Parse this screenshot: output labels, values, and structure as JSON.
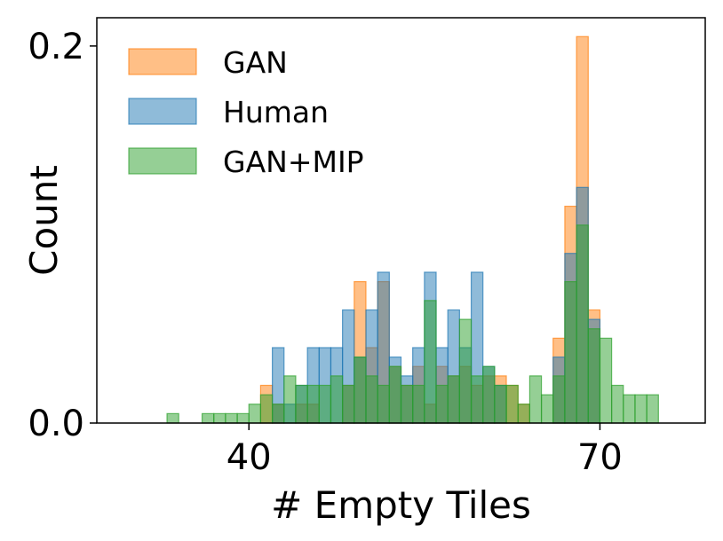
{
  "chart_data": {
    "type": "bar",
    "histogram": true,
    "xlabel": "# Empty Tiles",
    "ylabel": "Count",
    "xlim": [
      27,
      79
    ],
    "ylim": [
      0,
      0.215
    ],
    "xticks": [
      {
        "value": 40,
        "label": "40"
      },
      {
        "value": 70,
        "label": "70"
      }
    ],
    "yticks": [
      {
        "value": 0.0,
        "label": "0.0"
      },
      {
        "value": 0.2,
        "label": "0.2"
      }
    ],
    "legend_position": "upper-left",
    "grid": false,
    "series": [
      {
        "name": "GAN",
        "color": "#ff7f0e",
        "values": [
          [
            41.5,
            0.02
          ],
          [
            42.5,
            0.01
          ],
          [
            44.5,
            0.01
          ],
          [
            45.5,
            0.01
          ],
          [
            48.5,
            0.02
          ],
          [
            49.5,
            0.075
          ],
          [
            50.5,
            0.04
          ],
          [
            51.5,
            0.075
          ],
          [
            52.5,
            0.03
          ],
          [
            53.5,
            0.02
          ],
          [
            54.5,
            0.03
          ],
          [
            55.5,
            0.01
          ],
          [
            56.5,
            0.03
          ],
          [
            57.5,
            0.025
          ],
          [
            58.5,
            0.03
          ],
          [
            59.5,
            0.02
          ],
          [
            60.5,
            0.025
          ],
          [
            61.5,
            0.025
          ],
          [
            62.5,
            0.02
          ],
          [
            63.5,
            0.01
          ],
          [
            66.5,
            0.045
          ],
          [
            67.5,
            0.115
          ],
          [
            68.5,
            0.205
          ],
          [
            69.5,
            0.06
          ]
        ]
      },
      {
        "name": "Human",
        "color": "#1f77b4",
        "values": [
          [
            42.5,
            0.04
          ],
          [
            43.5,
            0.01
          ],
          [
            44.5,
            0.02
          ],
          [
            45.5,
            0.04
          ],
          [
            46.5,
            0.04
          ],
          [
            47.5,
            0.04
          ],
          [
            48.5,
            0.06
          ],
          [
            49.5,
            0.035
          ],
          [
            50.5,
            0.06
          ],
          [
            51.5,
            0.08
          ],
          [
            52.5,
            0.035
          ],
          [
            53.5,
            0.025
          ],
          [
            54.5,
            0.04
          ],
          [
            55.5,
            0.08
          ],
          [
            56.5,
            0.04
          ],
          [
            57.5,
            0.06
          ],
          [
            58.5,
            0.04
          ],
          [
            59.5,
            0.08
          ],
          [
            60.5,
            0.03
          ],
          [
            61.5,
            0.02
          ],
          [
            66.5,
            0.035
          ],
          [
            67.5,
            0.09
          ],
          [
            68.5,
            0.125
          ],
          [
            69.5,
            0.055
          ]
        ]
      },
      {
        "name": "GAN+MIP",
        "color": "#2ca02c",
        "values": [
          [
            33.5,
            0.005
          ],
          [
            36.5,
            0.005
          ],
          [
            37.5,
            0.005
          ],
          [
            38.5,
            0.005
          ],
          [
            39.5,
            0.005
          ],
          [
            40.5,
            0.01
          ],
          [
            41.5,
            0.015
          ],
          [
            42.5,
            0.01
          ],
          [
            43.5,
            0.025
          ],
          [
            44.5,
            0.02
          ],
          [
            45.5,
            0.02
          ],
          [
            46.5,
            0.02
          ],
          [
            47.5,
            0.025
          ],
          [
            48.5,
            0.02
          ],
          [
            49.5,
            0.035
          ],
          [
            50.5,
            0.025
          ],
          [
            51.5,
            0.02
          ],
          [
            52.5,
            0.03
          ],
          [
            53.5,
            0.02
          ],
          [
            54.5,
            0.02
          ],
          [
            55.5,
            0.065
          ],
          [
            56.5,
            0.02
          ],
          [
            57.5,
            0.025
          ],
          [
            58.5,
            0.055
          ],
          [
            59.5,
            0.025
          ],
          [
            60.5,
            0.03
          ],
          [
            61.5,
            0.02
          ],
          [
            62.5,
            0.02
          ],
          [
            63.5,
            0.01
          ],
          [
            64.5,
            0.025
          ],
          [
            65.5,
            0.015
          ],
          [
            66.5,
            0.025
          ],
          [
            67.5,
            0.075
          ],
          [
            68.5,
            0.105
          ],
          [
            69.5,
            0.05
          ],
          [
            70.5,
            0.045
          ],
          [
            71.5,
            0.02
          ],
          [
            72.5,
            0.015
          ],
          [
            73.5,
            0.015
          ],
          [
            74.5,
            0.015
          ]
        ]
      }
    ]
  }
}
